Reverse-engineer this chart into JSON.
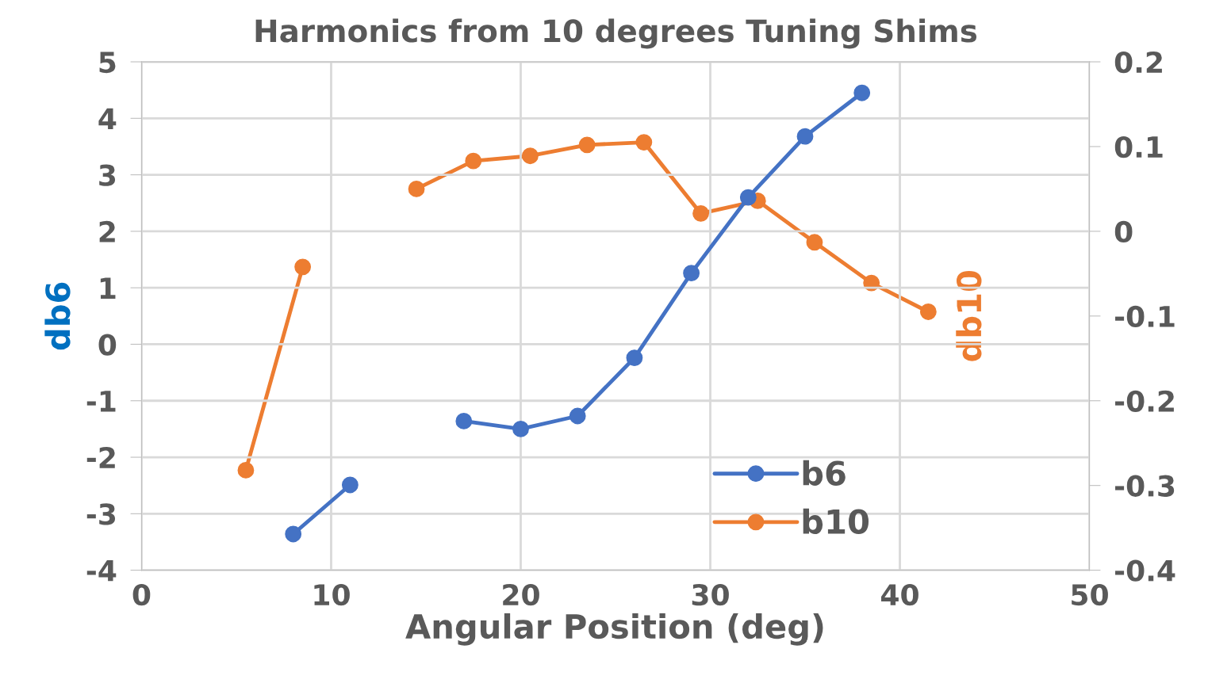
{
  "chart_data": {
    "type": "line",
    "title": "Harmonics from 10 degrees Tuning Shims",
    "xlabel": "Angular Position (deg)",
    "ylabel": "db6",
    "y2label": "db10",
    "xlim": [
      0,
      50
    ],
    "xticks": [
      0,
      10,
      20,
      30,
      40,
      50
    ],
    "ylim": [
      -4,
      5
    ],
    "yticks": [
      -4,
      -3,
      -2,
      -1,
      0,
      1,
      2,
      3,
      4,
      5
    ],
    "y2lim": [
      -0.4,
      0.2
    ],
    "y2ticks": [
      -0.4,
      -0.3,
      -0.2,
      -0.1,
      0,
      0.1,
      0.2
    ],
    "grid": true,
    "legend": "bottom right",
    "marker": "circle",
    "line_style": "solid",
    "series": [
      {
        "name": "b6",
        "color": "#4472c4",
        "x": [
          8,
          11,
          14,
          17,
          20,
          23,
          26,
          29,
          32,
          35,
          38
        ],
        "values": [
          -3.36,
          -2.49,
          null,
          -1.36,
          -1.5,
          -1.27,
          -0.24,
          1.26,
          2.6,
          3.68,
          4.45
        ]
      },
      {
        "name": "b10",
        "color": "#ed7d31",
        "axis": "y2",
        "x": [
          5.5,
          8.5,
          11.5,
          14.5,
          17.5,
          20.5,
          23.5,
          26.5,
          29.5,
          32.5,
          35.5,
          38.5,
          41.5
        ],
        "values": [
          -0.282,
          -0.042,
          null,
          0.05,
          0.083,
          0.089,
          0.102,
          0.105,
          0.021,
          0.036,
          -0.013,
          -0.061,
          -0.095
        ]
      }
    ]
  }
}
